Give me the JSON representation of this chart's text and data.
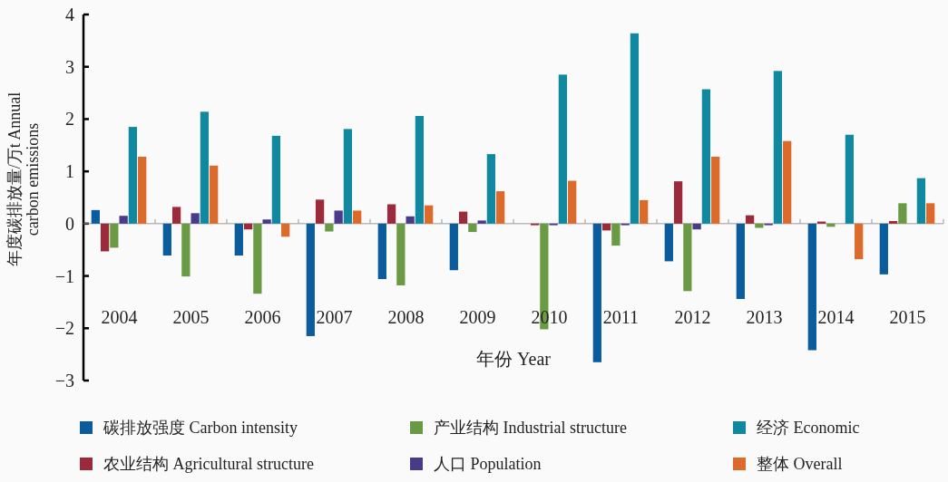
{
  "chart_data": {
    "type": "bar",
    "xlabel": "年份 Year",
    "ylabel": "年度碳排放量/万t Annual carbon emissions",
    "categories": [
      "2004",
      "2005",
      "2006",
      "2007",
      "2008",
      "2009",
      "2010",
      "2011",
      "2012",
      "2013",
      "2014",
      "2015"
    ],
    "ylim": [
      -3,
      4
    ],
    "yticks": [
      -3,
      -2,
      -1,
      0,
      1,
      2,
      3,
      4
    ],
    "legend": "bottom",
    "series": [
      {
        "name": "碳排放强度 Carbon intensity",
        "color": "#0a5c9c",
        "values": [
          0.26,
          -0.61,
          -0.61,
          -2.15,
          -1.06,
          -0.89,
          0,
          -2.65,
          -0.72,
          -1.44,
          -2.42,
          -0.97
        ]
      },
      {
        "name": "农业结构 Agricultural structure",
        "color": "#9b2a3a",
        "values": [
          -0.53,
          0.32,
          -0.11,
          0.46,
          0.37,
          0.23,
          -0.03,
          -0.13,
          0.81,
          0.16,
          0.04,
          0.05
        ]
      },
      {
        "name": "产业结构 Industrial structure",
        "color": "#6a9a44",
        "values": [
          -0.46,
          -1.01,
          -1.34,
          -0.15,
          -1.18,
          -0.16,
          -2.02,
          -0.42,
          -1.29,
          -0.08,
          -0.06,
          0.39
        ]
      },
      {
        "name": "人口 Population",
        "color": "#4a3a8a",
        "values": [
          0.15,
          0.2,
          0.08,
          0.25,
          0.14,
          0.06,
          -0.03,
          -0.03,
          -0.11,
          -0.03,
          0,
          0
        ]
      },
      {
        "name": "经济 Economic",
        "color": "#1089a0",
        "values": [
          1.85,
          2.14,
          1.68,
          1.81,
          2.06,
          1.33,
          2.85,
          3.64,
          2.57,
          2.92,
          1.7,
          0.87
        ]
      },
      {
        "name": "整体 Overall",
        "color": "#dc6a2a",
        "values": [
          1.28,
          1.11,
          -0.25,
          0.25,
          0.35,
          0.62,
          0.82,
          0.45,
          1.28,
          1.58,
          -0.68,
          0.39
        ]
      }
    ]
  }
}
